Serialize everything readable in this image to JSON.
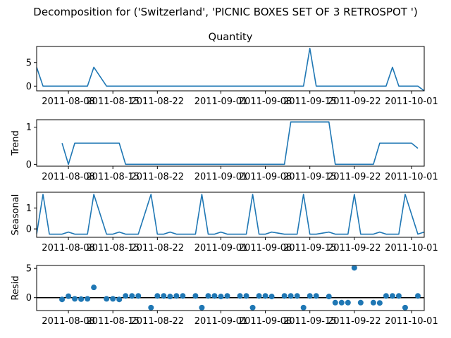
{
  "figure": {
    "title": "Decomposition for ('Switzerland', 'PICNIC BOXES SET OF 3 RETROSPOT ')"
  },
  "colors": {
    "series": "#1f77b4",
    "zero_line": "#000000",
    "frame": "#000000"
  },
  "chart_data": [
    {
      "type": "line",
      "title": "Quantity",
      "ylabel": "",
      "x_start": "2011-08-03",
      "x_end": "2011-10-03",
      "ylim": [
        -1.0,
        8.4
      ],
      "yticks": [
        0,
        5
      ],
      "xticks": [
        "2011-08-08",
        "2011-08-15",
        "2011-08-22",
        "2011-09-01",
        "2011-09-08",
        "2011-09-15",
        "2011-09-22",
        "2011-10-01"
      ],
      "x": [
        "2011-08-03",
        "2011-08-04",
        "2011-08-05",
        "2011-08-07",
        "2011-08-08",
        "2011-08-09",
        "2011-08-10",
        "2011-08-11",
        "2011-08-12",
        "2011-08-14",
        "2011-08-15",
        "2011-08-16",
        "2011-08-17",
        "2011-08-18",
        "2011-08-19",
        "2011-08-21",
        "2011-08-22",
        "2011-08-23",
        "2011-08-24",
        "2011-08-25",
        "2011-08-26",
        "2011-08-28",
        "2011-08-29",
        "2011-08-30",
        "2011-08-31",
        "2011-09-01",
        "2011-09-02",
        "2011-09-04",
        "2011-09-05",
        "2011-09-06",
        "2011-09-07",
        "2011-09-08",
        "2011-09-09",
        "2011-09-11",
        "2011-09-12",
        "2011-09-13",
        "2011-09-14",
        "2011-09-15",
        "2011-09-16",
        "2011-09-18",
        "2011-09-19",
        "2011-09-20",
        "2011-09-21",
        "2011-09-22",
        "2011-09-23",
        "2011-09-25",
        "2011-09-26",
        "2011-09-27",
        "2011-09-28",
        "2011-09-29",
        "2011-09-30",
        "2011-10-02",
        "2011-10-03"
      ],
      "series": [
        {
          "values": [
            4,
            0,
            0,
            0,
            0,
            0,
            0,
            0,
            4,
            0,
            0,
            0,
            0,
            0,
            0,
            0,
            0,
            0,
            0,
            0,
            0,
            0,
            0,
            0,
            0,
            0,
            0,
            0,
            0,
            0,
            0,
            0,
            0,
            0,
            0,
            0,
            0,
            8,
            0,
            0,
            0,
            0,
            0,
            0,
            0,
            0,
            0,
            0,
            4,
            0,
            0,
            0,
            -1
          ]
        }
      ]
    },
    {
      "type": "line",
      "title": "",
      "ylabel": "Trend",
      "x_start": "2011-08-03",
      "x_end": "2011-10-03",
      "ylim": [
        -0.05,
        1.2
      ],
      "yticks": [
        0,
        1
      ],
      "xticks": [
        "2011-08-08",
        "2011-08-15",
        "2011-08-22",
        "2011-09-01",
        "2011-09-08",
        "2011-09-15",
        "2011-09-22",
        "2011-10-01"
      ],
      "x": [
        "2011-08-07",
        "2011-08-08",
        "2011-08-09",
        "2011-08-16",
        "2011-08-17",
        "2011-09-11",
        "2011-09-12",
        "2011-09-18",
        "2011-09-19",
        "2011-09-25",
        "2011-09-26",
        "2011-10-01",
        "2011-10-02"
      ],
      "series": [
        {
          "values": [
            0.57,
            0.0,
            0.57,
            0.57,
            0.0,
            0.0,
            1.14,
            1.14,
            0.0,
            0.0,
            0.57,
            0.57,
            0.43
          ]
        }
      ]
    },
    {
      "type": "line",
      "title": "",
      "ylabel": "Seasonal",
      "x_start": "2011-08-03",
      "x_end": "2011-10-03",
      "ylim": [
        -0.4,
        1.75
      ],
      "yticks": [
        0,
        1
      ],
      "xticks": [
        "2011-08-08",
        "2011-08-15",
        "2011-08-22",
        "2011-09-01",
        "2011-09-08",
        "2011-09-15",
        "2011-09-22",
        "2011-10-01"
      ],
      "x": [
        "2011-08-03",
        "2011-08-04",
        "2011-08-05",
        "2011-08-07",
        "2011-08-08",
        "2011-08-09",
        "2011-08-10",
        "2011-08-11",
        "2011-08-12",
        "2011-08-14",
        "2011-08-15",
        "2011-08-16",
        "2011-08-17",
        "2011-08-18",
        "2011-08-19",
        "2011-08-21",
        "2011-08-22",
        "2011-08-23",
        "2011-08-24",
        "2011-08-25",
        "2011-08-26",
        "2011-08-28",
        "2011-08-29",
        "2011-08-30",
        "2011-08-31",
        "2011-09-01",
        "2011-09-02",
        "2011-09-04",
        "2011-09-05",
        "2011-09-06",
        "2011-09-07",
        "2011-09-08",
        "2011-09-09",
        "2011-09-11",
        "2011-09-12",
        "2011-09-13",
        "2011-09-14",
        "2011-09-15",
        "2011-09-16",
        "2011-09-18",
        "2011-09-19",
        "2011-09-20",
        "2011-09-21",
        "2011-09-22",
        "2011-09-23",
        "2011-09-25",
        "2011-09-26",
        "2011-09-27",
        "2011-09-28",
        "2011-09-29",
        "2011-09-30",
        "2011-10-02",
        "2011-10-03"
      ],
      "series": [
        {
          "values": [
            -0.25,
            1.65,
            -0.25,
            -0.25,
            -0.15,
            -0.25,
            -0.25,
            -0.25,
            1.65,
            -0.25,
            -0.25,
            -0.15,
            -0.25,
            -0.25,
            -0.25,
            1.65,
            -0.25,
            -0.25,
            -0.15,
            -0.25,
            -0.25,
            -0.25,
            1.65,
            -0.25,
            -0.25,
            -0.15,
            -0.25,
            -0.25,
            -0.25,
            1.65,
            -0.25,
            -0.25,
            -0.15,
            -0.25,
            -0.25,
            -0.25,
            1.65,
            -0.25,
            -0.25,
            -0.15,
            -0.25,
            -0.25,
            -0.25,
            1.65,
            -0.25,
            -0.25,
            -0.15,
            -0.25,
            -0.25,
            -0.25,
            1.65,
            -0.25,
            -0.15
          ]
        }
      ]
    },
    {
      "type": "scatter",
      "title": "",
      "ylabel": "Resid",
      "x_start": "2011-08-03",
      "x_end": "2011-10-03",
      "ylim": [
        -2.2,
        5.5
      ],
      "yticks": [
        0,
        5
      ],
      "xticks": [
        "2011-08-08",
        "2011-08-15",
        "2011-08-22",
        "2011-09-01",
        "2011-09-08",
        "2011-09-15",
        "2011-09-22",
        "2011-10-01"
      ],
      "zero_line": 0,
      "x": [
        "2011-08-07",
        "2011-08-08",
        "2011-08-09",
        "2011-08-10",
        "2011-08-11",
        "2011-08-12",
        "2011-08-14",
        "2011-08-15",
        "2011-08-16",
        "2011-08-17",
        "2011-08-18",
        "2011-08-19",
        "2011-08-21",
        "2011-08-22",
        "2011-08-23",
        "2011-08-24",
        "2011-08-25",
        "2011-08-26",
        "2011-08-28",
        "2011-08-29",
        "2011-08-30",
        "2011-08-31",
        "2011-09-01",
        "2011-09-02",
        "2011-09-04",
        "2011-09-05",
        "2011-09-06",
        "2011-09-07",
        "2011-09-08",
        "2011-09-09",
        "2011-09-11",
        "2011-09-12",
        "2011-09-13",
        "2011-09-14",
        "2011-09-15",
        "2011-09-16",
        "2011-09-18",
        "2011-09-19",
        "2011-09-20",
        "2011-09-21",
        "2011-09-22",
        "2011-09-23",
        "2011-09-25",
        "2011-09-26",
        "2011-09-27",
        "2011-09-28",
        "2011-09-29",
        "2011-09-30",
        "2011-10-02"
      ],
      "series": [
        {
          "values": [
            -0.3,
            0.25,
            -0.2,
            -0.25,
            -0.2,
            1.75,
            -0.2,
            -0.2,
            -0.3,
            0.3,
            0.3,
            0.3,
            -1.7,
            0.3,
            0.3,
            0.2,
            0.3,
            0.3,
            0.3,
            -1.7,
            0.3,
            0.3,
            0.2,
            0.3,
            0.3,
            0.3,
            -1.7,
            0.3,
            0.3,
            0.2,
            0.3,
            0.3,
            0.3,
            -1.7,
            0.3,
            0.3,
            0.2,
            -0.85,
            -0.85,
            -0.85,
            5.1,
            -0.85,
            -0.85,
            -0.9,
            0.3,
            0.3,
            0.3,
            -1.7,
            0.3
          ]
        }
      ]
    }
  ]
}
